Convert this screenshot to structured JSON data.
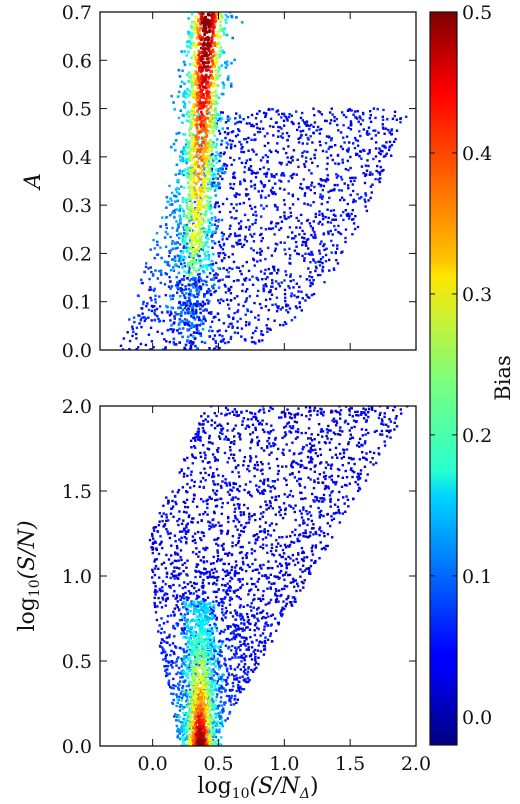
{
  "chart_data": [
    {
      "type": "scatter",
      "panel": "top",
      "xlabel": "",
      "ylabel": "A",
      "xlim": [
        -0.4,
        2.0
      ],
      "ylim": [
        0.0,
        0.7
      ],
      "xticks": [
        0.0,
        0.5,
        1.0,
        1.5,
        2.0
      ],
      "xtick_labels_shown": false,
      "yticks": [
        "0.0",
        "0.1",
        "0.2",
        "0.3",
        "0.4",
        "0.5",
        "0.6",
        "0.7"
      ],
      "color_variable": "Bias",
      "density_shape": {
        "high_bias_ridge_x": [
          0.25,
          0.55
        ],
        "high_bias_ridge_y_range": [
          0.2,
          0.7
        ],
        "lower_boundary": [
          [
            -0.15,
            0.0
          ],
          [
            0.5,
            0.0
          ],
          [
            1.0,
            0.02
          ],
          [
            1.5,
            0.12
          ],
          [
            1.85,
            0.32
          ],
          [
            1.95,
            0.49
          ]
        ],
        "upper_boundary": [
          [
            0.3,
            0.7
          ],
          [
            0.6,
            0.55
          ],
          [
            1.0,
            0.5
          ],
          [
            1.5,
            0.5
          ],
          [
            1.95,
            0.49
          ]
        ],
        "left_boundary": [
          [
            -0.25,
            0.02
          ],
          [
            0.0,
            0.12
          ],
          [
            0.15,
            0.3
          ],
          [
            0.22,
            0.5
          ],
          [
            0.28,
            0.7
          ]
        ]
      }
    },
    {
      "type": "scatter",
      "panel": "bottom",
      "xlabel": "log",
      "xlabel_sub": "10",
      "xlabel_rest": "(S/N",
      "xlabel_sub2": "Δ",
      "xlabel_end": ")",
      "ylabel": "log",
      "ylabel_sub": "10",
      "ylabel_rest": "(S/N)",
      "xlim": [
        -0.4,
        2.0
      ],
      "ylim": [
        0.0,
        2.0
      ],
      "xticks": [
        "0.0",
        "0.5",
        "1.0",
        "1.5",
        "2.0"
      ],
      "yticks": [
        "0.0",
        "0.5",
        "1.0",
        "1.5",
        "2.0"
      ],
      "color_variable": "Bias",
      "density_shape": {
        "high_bias_column_x": [
          0.22,
          0.5
        ],
        "high_bias_column_y_range": [
          0.0,
          0.8
        ],
        "right_boundary": [
          [
            0.5,
            0.0
          ],
          [
            0.8,
            0.35
          ],
          [
            1.2,
            0.9
          ],
          [
            1.6,
            1.45
          ],
          [
            1.95,
            2.0
          ]
        ],
        "left_boundary": [
          [
            0.2,
            0.0
          ],
          [
            0.05,
            0.6
          ],
          [
            -0.05,
            1.1
          ],
          [
            0.2,
            1.6
          ],
          [
            0.45,
            2.0
          ]
        ]
      }
    }
  ],
  "colorbar": {
    "label": "Bias",
    "min": -0.02,
    "max": 0.5,
    "ticks": [
      "0.0",
      "0.1",
      "0.2",
      "0.3",
      "0.4",
      "0.5"
    ],
    "colormap": "jet"
  }
}
